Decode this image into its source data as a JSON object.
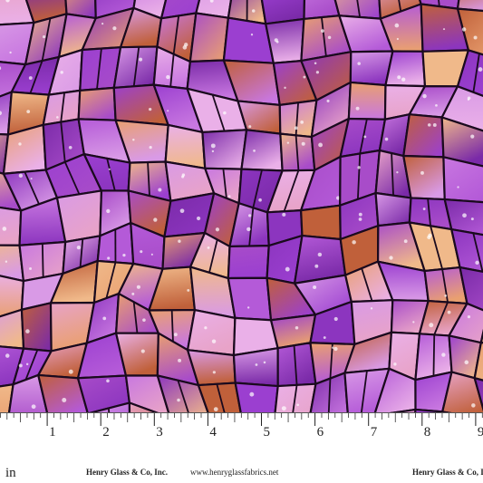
{
  "ruler": {
    "unit": "in",
    "marks": [
      1,
      2,
      3,
      4,
      5,
      6,
      7,
      8,
      9
    ]
  },
  "footer": {
    "brand_left": "Henry Glass & Co, Inc.",
    "website": "www.henryglassfabrics.net",
    "brand_right": "Henry Glass & Co, Inc."
  }
}
